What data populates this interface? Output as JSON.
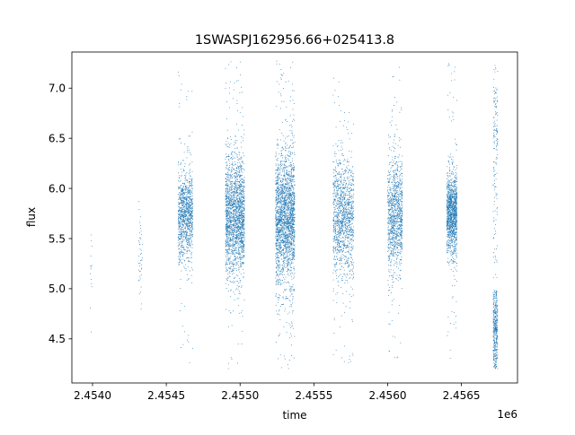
{
  "chart_data": {
    "type": "scatter",
    "title": "1SWASPJ162956.66+025413.8",
    "xlabel": "time",
    "ylabel": "flux",
    "x_offset_label": "1e6",
    "xlim": [
      2453860,
      2456880
    ],
    "ylim": [
      4.06,
      7.36
    ],
    "x_ticks": [
      2454000,
      2454500,
      2455000,
      2455500,
      2456000,
      2456500
    ],
    "x_tick_labels": [
      "2.4540",
      "2.4545",
      "2.4550",
      "2.4555",
      "2.4560",
      "2.4565"
    ],
    "y_ticks": [
      4.5,
      5.0,
      5.5,
      6.0,
      6.5,
      7.0
    ],
    "y_tick_labels": [
      "4.5",
      "5.0",
      "5.5",
      "6.0",
      "6.5",
      "7.0"
    ],
    "grid": false,
    "legend": "none",
    "marker_color": "#1f77b4",
    "series": [
      {
        "clusters": [
          {
            "x_start": 2453985,
            "x_end": 2453995,
            "flux_center": 5.3,
            "flux_spread": 0.35,
            "flux_min": 4.52,
            "flux_max": 5.68,
            "points": 14
          },
          {
            "x_start": 2454310,
            "x_end": 2454340,
            "flux_center": 5.35,
            "flux_spread": 0.3,
            "flux_min": 4.7,
            "flux_max": 5.95,
            "points": 45
          },
          {
            "x_start": 2454580,
            "x_end": 2454680,
            "flux_center": 5.72,
            "flux_spread": 0.22,
            "flux_min": 4.22,
            "flux_max": 7.25,
            "points": 1100
          },
          {
            "x_start": 2454900,
            "x_end": 2455030,
            "flux_center": 5.72,
            "flux_spread": 0.3,
            "flux_min": 4.2,
            "flux_max": 7.3,
            "points": 2000
          },
          {
            "x_start": 2455240,
            "x_end": 2455370,
            "flux_center": 5.72,
            "flux_spread": 0.33,
            "flux_min": 4.2,
            "flux_max": 7.3,
            "points": 2300
          },
          {
            "x_start": 2455630,
            "x_end": 2455770,
            "flux_center": 5.72,
            "flux_spread": 0.3,
            "flux_min": 4.25,
            "flux_max": 7.2,
            "points": 1300
          },
          {
            "x_start": 2456000,
            "x_end": 2456100,
            "flux_center": 5.75,
            "flux_spread": 0.27,
            "flux_min": 4.25,
            "flux_max": 7.22,
            "points": 1100
          },
          {
            "x_start": 2456400,
            "x_end": 2456470,
            "flux_center": 5.75,
            "flux_spread": 0.2,
            "flux_min": 4.3,
            "flux_max": 7.25,
            "points": 1300
          },
          {
            "x_start": 2456715,
            "x_end": 2456745,
            "flux_center": 4.55,
            "flux_spread": 0.25,
            "flux_min": 4.2,
            "flux_max": 5.0,
            "points": 400
          },
          {
            "x_start": 2456715,
            "x_end": 2456745,
            "flux_center": 6.5,
            "flux_spread": 0.6,
            "flux_min": 5.1,
            "flux_max": 7.25,
            "points": 160
          }
        ]
      }
    ]
  }
}
